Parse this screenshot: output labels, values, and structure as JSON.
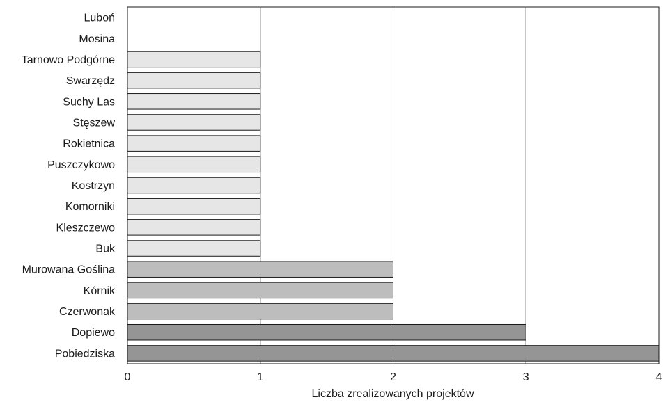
{
  "chart_data": {
    "type": "bar",
    "orientation": "horizontal",
    "categories": [
      "Luboń",
      "Mosina",
      "Tarnowo Podgórne",
      "Swarzędz",
      "Suchy Las",
      "Stęszew",
      "Rokietnica",
      "Puszczykowo",
      "Kostrzyn",
      "Komorniki",
      "Kleszczewo",
      "Buk",
      "Murowana Goślina",
      "Kórnik",
      "Czerwonak",
      "Dopiewo",
      "Pobiedziska"
    ],
    "values": [
      0,
      0,
      1,
      1,
      1,
      1,
      1,
      1,
      1,
      1,
      1,
      1,
      2,
      2,
      2,
      3,
      4
    ],
    "xlabel": "Liczba zrealizowanych projektów",
    "xlim": [
      0,
      4
    ],
    "xticks": [
      "0",
      "1",
      "2",
      "3",
      "4"
    ],
    "grid": "vertical",
    "bar_colors": {
      "1": "#e6e6e6",
      "2": "#bdbdbd",
      "3": "#959595",
      "4": "#959595"
    }
  }
}
